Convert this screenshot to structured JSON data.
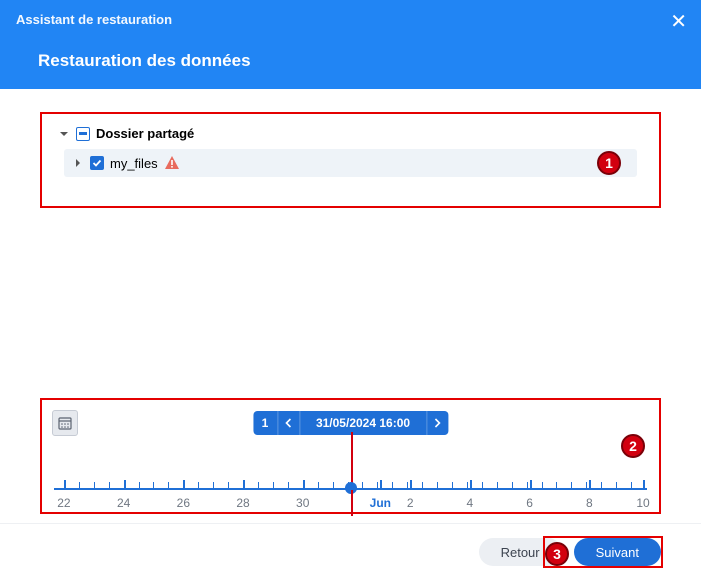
{
  "colors": {
    "accent": "#1f6fd6",
    "header_bg": "#2185f4",
    "annotation_red": "#d2000f",
    "annotation_border": "#7a0008",
    "text_muted": "#6f7782"
  },
  "header": {
    "small_title": "Assistant de restauration",
    "title": "Restauration des données"
  },
  "tree": {
    "root_label": "Dossier partagé",
    "root_state": "partial",
    "child_label": "my_files",
    "child_state": "checked",
    "child_has_warning": true
  },
  "timeline": {
    "point_count": "1",
    "selected_datetime": "31/05/2024 16:00",
    "ticks": [
      {
        "label": "22",
        "pos_pct": 2
      },
      {
        "label": "24",
        "pos_pct": 12
      },
      {
        "label": "26",
        "pos_pct": 22
      },
      {
        "label": "28",
        "pos_pct": 32
      },
      {
        "label": "30",
        "pos_pct": 42
      },
      {
        "label": "Jun",
        "pos_pct": 55,
        "is_month": true
      },
      {
        "label": "2",
        "pos_pct": 60
      },
      {
        "label": "4",
        "pos_pct": 70
      },
      {
        "label": "6",
        "pos_pct": 80
      },
      {
        "label": "8",
        "pos_pct": 90
      },
      {
        "label": "10",
        "pos_pct": 99
      }
    ],
    "marker_pos_pct": 50
  },
  "annotations": {
    "tree_badge": "1",
    "timeline_badge": "2",
    "next_badge": "3"
  },
  "footer": {
    "back_label": "Retour",
    "next_label": "Suivant"
  }
}
